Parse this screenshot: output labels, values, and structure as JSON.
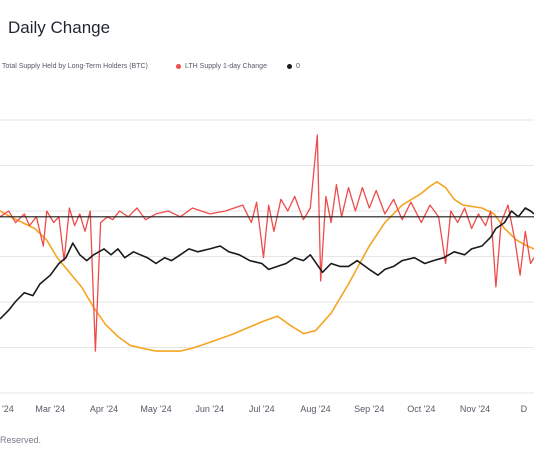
{
  "title": "Daily Change",
  "legend": {
    "supply_label": "Total Supply Held by Long-Term Holders (BTC)",
    "change_label": "LTH Supply 1-day Change",
    "zero_label": "0"
  },
  "colors": {
    "supply": "#f5a524",
    "change": "#ee4b4b",
    "zero": "#1a1a1a",
    "title": "#1f2533",
    "grid": "#e6e6e6"
  },
  "footer": "Reserved.",
  "chart_data": {
    "type": "line",
    "x_ticks": [
      "'24",
      "Mar '24",
      "Apr '24",
      "May '24",
      "Jun '24",
      "Jul '24",
      "Aug '24",
      "Sep '24",
      "Oct '24",
      "Nov '24",
      "D"
    ],
    "x_range": [
      "2024-02-01",
      "2024-12-05"
    ],
    "x_tick_dates": [
      "2024-02-01",
      "2024-03-01",
      "2024-04-01",
      "2024-05-01",
      "2024-06-01",
      "2024-07-01",
      "2024-08-01",
      "2024-09-01",
      "2024-10-01",
      "2024-11-01",
      "2024-12-01"
    ],
    "ylim": [
      0,
      100
    ],
    "zero_level": 60,
    "grid": "horizontal",
    "legend_position": "top-left",
    "series": [
      {
        "key": "supply",
        "color": "#f5a524",
        "points": [
          [
            "2024-02-01",
            62
          ],
          [
            "2024-02-07",
            60
          ],
          [
            "2024-02-14",
            58
          ],
          [
            "2024-02-21",
            56
          ],
          [
            "2024-02-28",
            52
          ],
          [
            "2024-03-05",
            46
          ],
          [
            "2024-03-12",
            41
          ],
          [
            "2024-03-19",
            36
          ],
          [
            "2024-03-26",
            29
          ],
          [
            "2024-04-02",
            23
          ],
          [
            "2024-04-09",
            19
          ],
          [
            "2024-04-16",
            16
          ],
          [
            "2024-04-23",
            15
          ],
          [
            "2024-05-01",
            14
          ],
          [
            "2024-05-08",
            14
          ],
          [
            "2024-05-15",
            14
          ],
          [
            "2024-05-22",
            15
          ],
          [
            "2024-06-01",
            17
          ],
          [
            "2024-06-15",
            20
          ],
          [
            "2024-07-01",
            24
          ],
          [
            "2024-07-10",
            26
          ],
          [
            "2024-07-17",
            23
          ],
          [
            "2024-07-25",
            20
          ],
          [
            "2024-08-01",
            21
          ],
          [
            "2024-08-10",
            27
          ],
          [
            "2024-08-20",
            37
          ],
          [
            "2024-09-01",
            50
          ],
          [
            "2024-09-10",
            58
          ],
          [
            "2024-09-20",
            64
          ],
          [
            "2024-10-01",
            68
          ],
          [
            "2024-10-05",
            70
          ],
          [
            "2024-10-10",
            72
          ],
          [
            "2024-10-15",
            70
          ],
          [
            "2024-10-20",
            66
          ],
          [
            "2024-10-25",
            64
          ],
          [
            "2024-11-05",
            63
          ],
          [
            "2024-11-12",
            61
          ],
          [
            "2024-11-18",
            56
          ],
          [
            "2024-11-25",
            52
          ],
          [
            "2024-12-01",
            50
          ],
          [
            "2024-12-05",
            49
          ]
        ]
      },
      {
        "key": "change",
        "color": "#ee4b4b",
        "points": [
          [
            "2024-02-01",
            60
          ],
          [
            "2024-02-06",
            62
          ],
          [
            "2024-02-10",
            58
          ],
          [
            "2024-02-15",
            61
          ],
          [
            "2024-02-18",
            57
          ],
          [
            "2024-02-22",
            60
          ],
          [
            "2024-02-26",
            50
          ],
          [
            "2024-02-28",
            62
          ],
          [
            "2024-03-03",
            58
          ],
          [
            "2024-03-06",
            60
          ],
          [
            "2024-03-09",
            45
          ],
          [
            "2024-03-12",
            63
          ],
          [
            "2024-03-15",
            57
          ],
          [
            "2024-03-18",
            61
          ],
          [
            "2024-03-21",
            55
          ],
          [
            "2024-03-24",
            62
          ],
          [
            "2024-03-27",
            14
          ],
          [
            "2024-03-30",
            58
          ],
          [
            "2024-04-03",
            60
          ],
          [
            "2024-04-06",
            59
          ],
          [
            "2024-04-10",
            62
          ],
          [
            "2024-04-15",
            60
          ],
          [
            "2024-04-20",
            63
          ],
          [
            "2024-04-25",
            59
          ],
          [
            "2024-05-01",
            61
          ],
          [
            "2024-05-08",
            62
          ],
          [
            "2024-05-15",
            60
          ],
          [
            "2024-05-22",
            63
          ],
          [
            "2024-06-01",
            61
          ],
          [
            "2024-06-10",
            62
          ],
          [
            "2024-06-20",
            64
          ],
          [
            "2024-06-25",
            58
          ],
          [
            "2024-06-28",
            65
          ],
          [
            "2024-07-02",
            46
          ],
          [
            "2024-07-05",
            64
          ],
          [
            "2024-07-08",
            55
          ],
          [
            "2024-07-12",
            66
          ],
          [
            "2024-07-16",
            62
          ],
          [
            "2024-07-20",
            67
          ],
          [
            "2024-07-25",
            59
          ],
          [
            "2024-07-29",
            63
          ],
          [
            "2024-08-02",
            88
          ],
          [
            "2024-08-04",
            38
          ],
          [
            "2024-08-07",
            67
          ],
          [
            "2024-08-10",
            58
          ],
          [
            "2024-08-13",
            71
          ],
          [
            "2024-08-16",
            60
          ],
          [
            "2024-08-20",
            70
          ],
          [
            "2024-08-24",
            62
          ],
          [
            "2024-08-28",
            70
          ],
          [
            "2024-09-01",
            63
          ],
          [
            "2024-09-05",
            69
          ],
          [
            "2024-09-10",
            61
          ],
          [
            "2024-09-15",
            66
          ],
          [
            "2024-09-20",
            59
          ],
          [
            "2024-09-25",
            65
          ],
          [
            "2024-10-01",
            58
          ],
          [
            "2024-10-06",
            64
          ],
          [
            "2024-10-11",
            60
          ],
          [
            "2024-10-15",
            44
          ],
          [
            "2024-10-18",
            62
          ],
          [
            "2024-10-22",
            58
          ],
          [
            "2024-10-26",
            63
          ],
          [
            "2024-10-30",
            56
          ],
          [
            "2024-11-03",
            61
          ],
          [
            "2024-11-07",
            57
          ],
          [
            "2024-11-10",
            62
          ],
          [
            "2024-11-13",
            36
          ],
          [
            "2024-11-16",
            58
          ],
          [
            "2024-11-20",
            64
          ],
          [
            "2024-11-24",
            52
          ],
          [
            "2024-11-27",
            40
          ],
          [
            "2024-11-30",
            55
          ],
          [
            "2024-12-03",
            44
          ],
          [
            "2024-12-05",
            46
          ]
        ]
      },
      {
        "key": "btc_price",
        "color": "#1a1a1a",
        "points": [
          [
            "2024-02-01",
            25
          ],
          [
            "2024-02-06",
            28
          ],
          [
            "2024-02-10",
            31
          ],
          [
            "2024-02-15",
            34
          ],
          [
            "2024-02-20",
            33
          ],
          [
            "2024-02-24",
            37
          ],
          [
            "2024-03-01",
            40
          ],
          [
            "2024-03-06",
            44
          ],
          [
            "2024-03-10",
            46
          ],
          [
            "2024-03-14",
            51
          ],
          [
            "2024-03-18",
            47
          ],
          [
            "2024-03-22",
            45
          ],
          [
            "2024-03-26",
            47
          ],
          [
            "2024-04-01",
            49
          ],
          [
            "2024-04-05",
            47
          ],
          [
            "2024-04-09",
            49
          ],
          [
            "2024-04-13",
            46
          ],
          [
            "2024-04-18",
            48
          ],
          [
            "2024-04-22",
            47
          ],
          [
            "2024-04-26",
            46
          ],
          [
            "2024-05-01",
            44
          ],
          [
            "2024-05-06",
            46
          ],
          [
            "2024-05-10",
            45
          ],
          [
            "2024-05-15",
            47
          ],
          [
            "2024-05-20",
            49
          ],
          [
            "2024-05-25",
            48
          ],
          [
            "2024-06-01",
            49
          ],
          [
            "2024-06-07",
            50
          ],
          [
            "2024-06-12",
            48
          ],
          [
            "2024-06-18",
            47
          ],
          [
            "2024-06-24",
            45
          ],
          [
            "2024-07-01",
            44
          ],
          [
            "2024-07-05",
            42
          ],
          [
            "2024-07-10",
            43
          ],
          [
            "2024-07-15",
            44
          ],
          [
            "2024-07-20",
            46
          ],
          [
            "2024-07-25",
            45
          ],
          [
            "2024-07-29",
            47
          ],
          [
            "2024-08-05",
            41
          ],
          [
            "2024-08-10",
            44
          ],
          [
            "2024-08-15",
            43
          ],
          [
            "2024-08-20",
            43
          ],
          [
            "2024-08-25",
            45
          ],
          [
            "2024-09-01",
            42
          ],
          [
            "2024-09-06",
            40
          ],
          [
            "2024-09-10",
            42
          ],
          [
            "2024-09-15",
            43
          ],
          [
            "2024-09-20",
            45
          ],
          [
            "2024-09-27",
            46
          ],
          [
            "2024-10-03",
            44
          ],
          [
            "2024-10-08",
            45
          ],
          [
            "2024-10-14",
            46
          ],
          [
            "2024-10-20",
            48
          ],
          [
            "2024-10-26",
            47
          ],
          [
            "2024-10-30",
            49
          ],
          [
            "2024-11-05",
            50
          ],
          [
            "2024-11-10",
            53
          ],
          [
            "2024-11-13",
            56
          ],
          [
            "2024-11-18",
            58
          ],
          [
            "2024-11-22",
            62
          ],
          [
            "2024-11-26",
            60
          ],
          [
            "2024-11-30",
            63
          ],
          [
            "2024-12-03",
            62
          ],
          [
            "2024-12-05",
            61
          ]
        ]
      }
    ]
  }
}
